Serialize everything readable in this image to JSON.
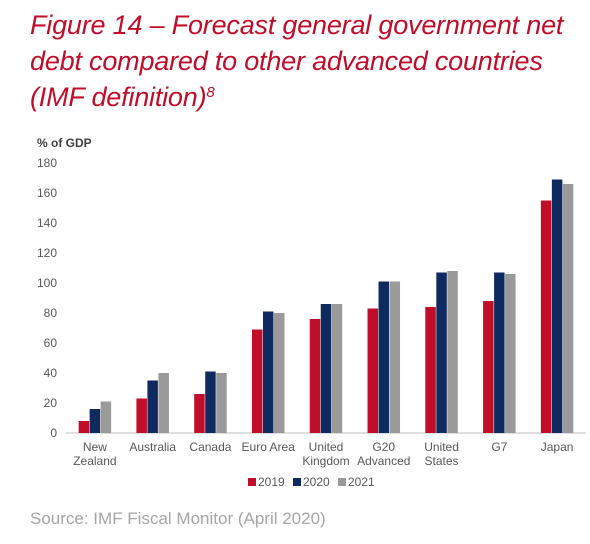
{
  "figure": {
    "title": "Figure 14 – Forecast general government net debt compared to other advanced countries (IMF definition)",
    "footnote_marker": "8"
  },
  "source": "Source: IMF Fiscal Monitor (April 2020)",
  "chart_data": {
    "type": "bar",
    "title": "",
    "xlabel": "",
    "ylabel": "% of GDP",
    "ylim": [
      0,
      180
    ],
    "yticks": [
      0,
      20,
      40,
      60,
      80,
      100,
      120,
      140,
      160,
      180
    ],
    "grid": false,
    "legend_position": "bottom",
    "categories": [
      [
        "New",
        "Zealand"
      ],
      [
        "Australia"
      ],
      [
        "Canada"
      ],
      [
        "Euro Area"
      ],
      [
        "United",
        "Kingdom"
      ],
      [
        "G20",
        "Advanced"
      ],
      [
        "United",
        "States"
      ],
      [
        "G7"
      ],
      [
        "Japan"
      ]
    ],
    "series": [
      {
        "name": "2019",
        "color": "#c00d2a",
        "values": [
          8,
          23,
          26,
          69,
          76,
          83,
          84,
          88,
          155
        ]
      },
      {
        "name": "2020",
        "color": "#0f2a5e",
        "values": [
          16,
          35,
          41,
          81,
          86,
          101,
          107,
          107,
          169
        ]
      },
      {
        "name": "2021",
        "color": "#9a9a9a",
        "values": [
          21,
          40,
          40,
          80,
          86,
          101,
          108,
          106,
          166
        ]
      }
    ]
  }
}
